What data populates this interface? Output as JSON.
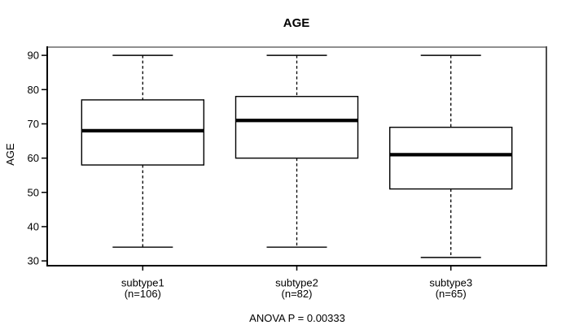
{
  "chart_data": {
    "type": "boxplot",
    "title": "AGE",
    "xlabel": "",
    "ylabel": "AGE",
    "ylim": [
      28.6,
      92.4
    ],
    "yticks": [
      30,
      40,
      50,
      60,
      70,
      80,
      90
    ],
    "grid": false,
    "legend": "none",
    "annotation": "ANOVA P = 0.00333",
    "groups": [
      {
        "label": "subtype1",
        "sublabel": "(n=106)",
        "n": 106,
        "whisker_low": 34,
        "q1": 58,
        "median": 68,
        "q3": 77,
        "whisker_high": 90
      },
      {
        "label": "subtype2",
        "sublabel": "(n=82)",
        "n": 82,
        "whisker_low": 34,
        "q1": 60,
        "median": 71,
        "q3": 78,
        "whisker_high": 90
      },
      {
        "label": "subtype3",
        "sublabel": "(n=65)",
        "n": 65,
        "whisker_low": 31,
        "q1": 51,
        "median": 61,
        "q3": 69,
        "whisker_high": 90
      }
    ],
    "colors": {
      "line": "#000000",
      "box_fill": "#ffffff",
      "background": "#ffffff",
      "border_top": "#8f8f8f",
      "border_right": "#4d4d4d"
    }
  }
}
